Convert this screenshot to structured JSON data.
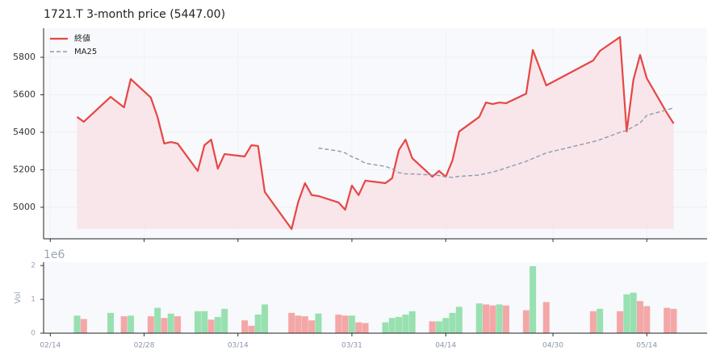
{
  "chart_data": [
    {
      "type": "line",
      "title": "1721.T  3-month price (5447.00)",
      "x": [
        "02/18",
        "02/19",
        "02/23",
        "02/25",
        "02/26",
        "03/01",
        "03/02",
        "03/03",
        "03/04",
        "03/05",
        "03/08",
        "03/09",
        "03/10",
        "03/11",
        "03/12",
        "03/15",
        "03/16",
        "03/17",
        "03/18",
        "03/22",
        "03/23",
        "03/24",
        "03/25",
        "03/26",
        "03/29",
        "03/30",
        "03/31",
        "04/01",
        "04/02",
        "04/05",
        "04/06",
        "04/07",
        "04/08",
        "04/09",
        "04/12",
        "04/13",
        "04/14",
        "04/15",
        "04/16",
        "04/19",
        "04/20",
        "04/21",
        "04/22",
        "04/23",
        "04/26",
        "04/27",
        "04/29",
        "05/06",
        "05/07",
        "05/10",
        "05/11",
        "05/12",
        "05/13",
        "05/14",
        "05/17",
        "05/18"
      ],
      "series": [
        {
          "name": "終値",
          "color": "#e84545",
          "linestyle": "solid",
          "fill": "#f8e1e5",
          "values": [
            5482,
            5456,
            5589,
            5533,
            5684,
            5585,
            5482,
            5340,
            5348,
            5340,
            5194,
            5331,
            5361,
            5206,
            5284,
            5271,
            5331,
            5327,
            5082,
            4884,
            5030,
            5129,
            5065,
            5060,
            5026,
            4987,
            5116,
            5065,
            5142,
            5129,
            5155,
            5305,
            5361,
            5262,
            5163,
            5194,
            5163,
            5250,
            5404,
            5482,
            5559,
            5551,
            5559,
            5555,
            5606,
            5839,
            5650,
            5783,
            5834,
            5908,
            5404,
            5680,
            5813,
            5688,
            5503,
            5447
          ]
        },
        {
          "name": "MA25",
          "color": "#8e9bb0",
          "linestyle": "dashed",
          "values": [
            null,
            null,
            null,
            null,
            null,
            null,
            null,
            null,
            null,
            null,
            null,
            null,
            null,
            null,
            null,
            null,
            null,
            null,
            null,
            null,
            null,
            null,
            null,
            5316,
            5300,
            5290,
            5270,
            5255,
            5235,
            5218,
            5205,
            5185,
            5178,
            5178,
            5172,
            5170,
            5162,
            5160,
            5165,
            5172,
            5180,
            5188,
            5198,
            5210,
            5245,
            5260,
            5290,
            5350,
            5360,
            5400,
            5410,
            5430,
            5450,
            5490,
            5520,
            5530
          ]
        }
      ],
      "xlim": [
        "02/13",
        "05/23"
      ],
      "xticks": [
        "02/14",
        "02/28",
        "03/14",
        "03/31",
        "04/14",
        "04/30",
        "05/14"
      ],
      "ylim": [
        4832,
        5955
      ],
      "yticks": [
        5000,
        5200,
        5400,
        5600,
        5800
      ],
      "grid": true,
      "legend": "upper left"
    },
    {
      "type": "bar",
      "ylabel": "Vol",
      "offset_label": "1e6",
      "x": [
        "02/18",
        "02/19",
        "02/23",
        "02/25",
        "02/26",
        "03/01",
        "03/02",
        "03/03",
        "03/04",
        "03/05",
        "03/08",
        "03/09",
        "03/10",
        "03/11",
        "03/12",
        "03/15",
        "03/16",
        "03/17",
        "03/18",
        "03/22",
        "03/23",
        "03/24",
        "03/25",
        "03/26",
        "03/29",
        "03/30",
        "03/31",
        "04/01",
        "04/02",
        "04/05",
        "04/06",
        "04/07",
        "04/08",
        "04/09",
        "04/12",
        "04/13",
        "04/14",
        "04/15",
        "04/16",
        "04/19",
        "04/20",
        "04/21",
        "04/22",
        "04/23",
        "04/26",
        "04/27",
        "04/29",
        "05/06",
        "05/07",
        "05/10",
        "05/11",
        "05/12",
        "05/13",
        "05/14",
        "05/17",
        "05/18"
      ],
      "values": [
        0.52,
        0.42,
        0.6,
        0.5,
        0.52,
        0.5,
        0.75,
        0.45,
        0.58,
        0.5,
        0.65,
        0.65,
        0.4,
        0.48,
        0.72,
        0.38,
        0.22,
        0.55,
        0.85,
        0.6,
        0.52,
        0.5,
        0.38,
        0.58,
        0.55,
        0.52,
        0.52,
        0.32,
        0.3,
        0.32,
        0.45,
        0.48,
        0.55,
        0.65,
        0.35,
        0.35,
        0.45,
        0.6,
        0.78,
        0.88,
        0.85,
        0.82,
        0.85,
        0.82,
        0.68,
        1.98,
        0.92,
        0.65,
        0.72,
        0.65,
        1.15,
        1.2,
        0.95,
        0.8,
        0.75,
        0.72
      ],
      "up_color": "#98e0b0",
      "down_color": "#f4a7a7",
      "xlim": [
        "02/13",
        "05/23"
      ],
      "xticks": [
        "02/14",
        "02/28",
        "03/14",
        "03/31",
        "04/14",
        "04/30",
        "05/14"
      ],
      "ylim": [
        0,
        2.1
      ],
      "yticks": [
        0,
        1,
        2
      ]
    }
  ]
}
